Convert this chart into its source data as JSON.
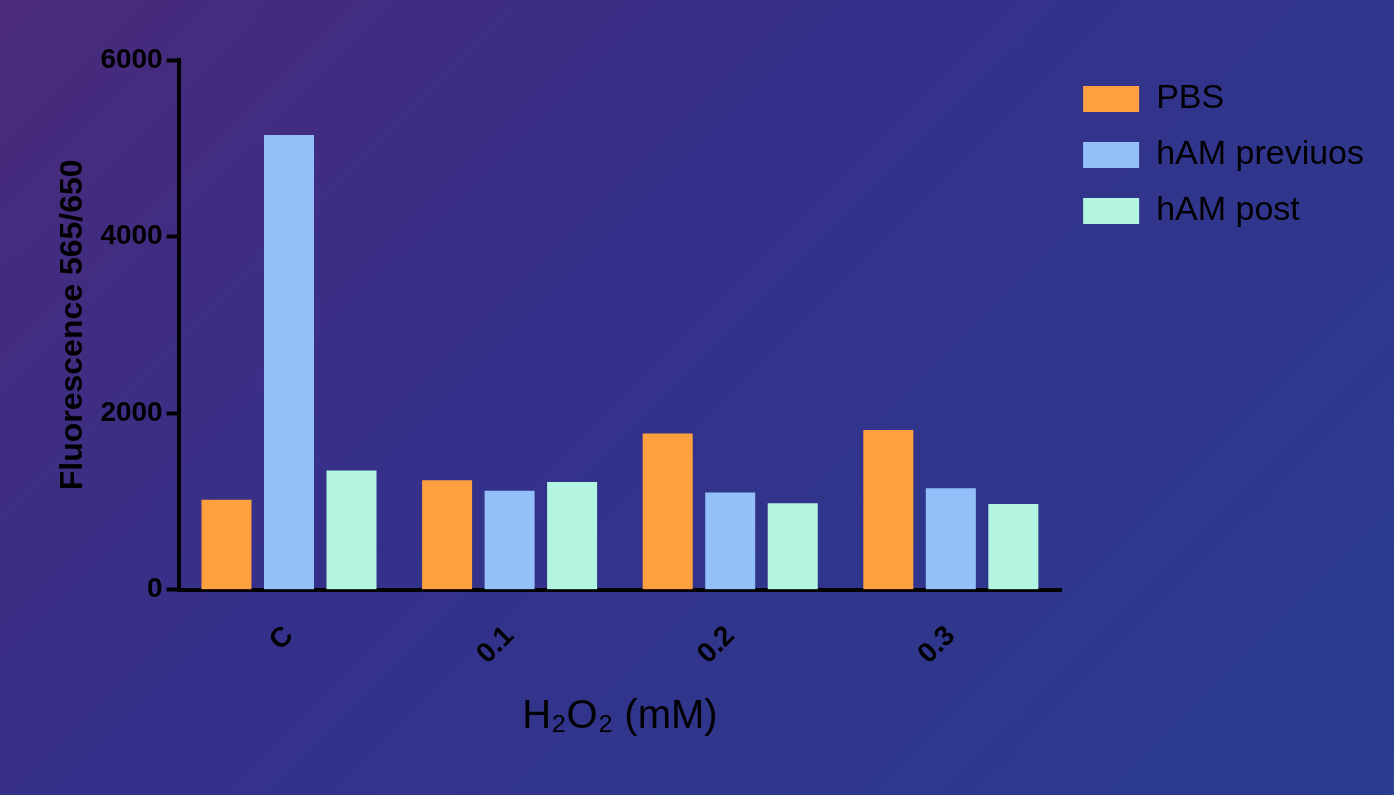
{
  "chart_data": {
    "type": "bar",
    "xlabel": "H₂O₂ (mM)",
    "ylabel": "Fluorescence 565/650",
    "categories": [
      "C",
      "0.1",
      "0.2",
      "0.3"
    ],
    "series": [
      {
        "name": "PBS",
        "color": "#ffa040",
        "values": [
          1020,
          1240,
          1770,
          1810
        ]
      },
      {
        "name": "hAM previuos",
        "color": "#93c0f8",
        "values": [
          5150,
          1120,
          1100,
          1150
        ]
      },
      {
        "name": "hAM post",
        "color": "#b3f5e0",
        "values": [
          1350,
          1220,
          980,
          970
        ]
      }
    ],
    "ylim": [
      0,
      6000
    ],
    "yticks": [
      0,
      2000,
      4000,
      6000
    ],
    "grid": false,
    "legend": "top right"
  }
}
